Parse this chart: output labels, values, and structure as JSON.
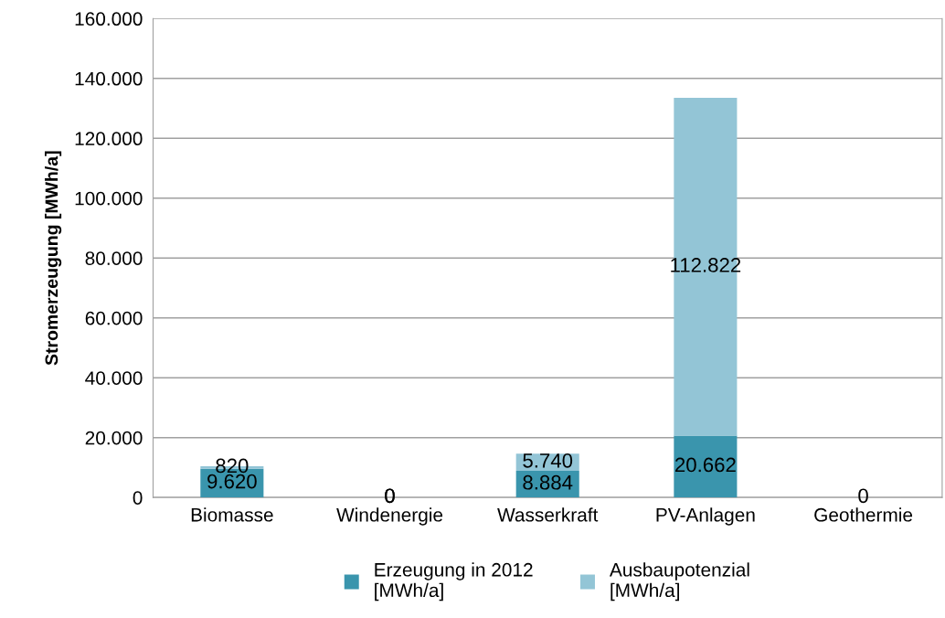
{
  "chart_data": {
    "type": "bar",
    "stacked": true,
    "ylabel": "Stromerzeugung [MWh/a]",
    "categories": [
      "Biomasse",
      "Windenergie",
      "Wasserkraft",
      "PV-Anlagen",
      "Geothermie"
    ],
    "series": [
      {
        "name": "Erzeugung in 2012\n[MWh/a]",
        "color": "#3a95ad",
        "values": [
          9620,
          0,
          8884,
          20662,
          0
        ],
        "value_labels": [
          "9.620",
          "0",
          "8.884",
          "20.662",
          null
        ]
      },
      {
        "name": "Ausbaupotenzial\n[MWh/a]",
        "color": "#93c5d6",
        "values": [
          820,
          0,
          5740,
          112822,
          0
        ],
        "value_labels": [
          "820",
          "0",
          "5.740",
          "112.822",
          "0"
        ]
      }
    ],
    "ylim": [
      0,
      160000
    ],
    "yticks": [
      0,
      {
        "value": 20000,
        "label": "20.000"
      },
      {
        "value": 40000,
        "label": "40.000"
      },
      {
        "value": 60000,
        "label": "60.000"
      },
      {
        "value": 80000,
        "label": "80.000"
      },
      {
        "value": 100000,
        "label": "100.000"
      },
      {
        "value": 120000,
        "label": "120.000"
      },
      {
        "value": 140000,
        "label": "140.000"
      },
      {
        "value": 160000,
        "label": "160.000"
      }
    ],
    "grid": "y",
    "legend": "bottom"
  }
}
